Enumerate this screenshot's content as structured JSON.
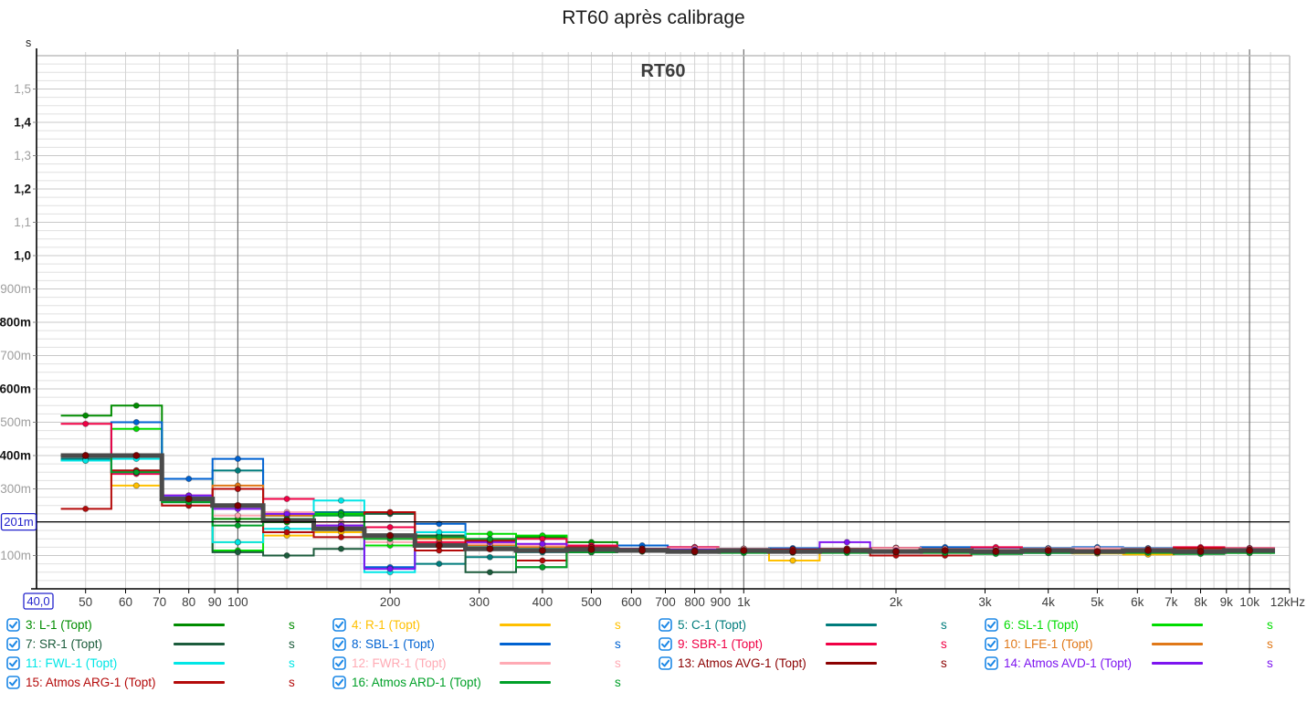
{
  "title": "RT60 après calibrage",
  "chart_data": {
    "type": "line",
    "style": "step-bands",
    "plot_title": "RT60",
    "y_axis": {
      "unit": "s",
      "min": 0,
      "max": 1.6,
      "minor_step": 0.025,
      "labels": [
        {
          "v": 1.5,
          "label": "1,5",
          "strong": false
        },
        {
          "v": 1.4,
          "label": "1,4",
          "strong": true
        },
        {
          "v": 1.3,
          "label": "1,3",
          "strong": false
        },
        {
          "v": 1.2,
          "label": "1,2",
          "strong": true
        },
        {
          "v": 1.1,
          "label": "1,1",
          "strong": false
        },
        {
          "v": 1.0,
          "label": "1,0",
          "strong": true
        },
        {
          "v": 0.9,
          "label": "900m",
          "strong": false
        },
        {
          "v": 0.8,
          "label": "800m",
          "strong": true
        },
        {
          "v": 0.7,
          "label": "700m",
          "strong": false
        },
        {
          "v": 0.6,
          "label": "600m",
          "strong": true
        },
        {
          "v": 0.5,
          "label": "500m",
          "strong": false
        },
        {
          "v": 0.4,
          "label": "400m",
          "strong": true
        },
        {
          "v": 0.3,
          "label": "300m",
          "strong": false
        },
        {
          "v": 0.1,
          "label": "100m",
          "strong": false
        }
      ]
    },
    "x_axis": {
      "scale": "log",
      "min": 40,
      "max": 12000,
      "ticks": [
        {
          "f": 50,
          "label": "50"
        },
        {
          "f": 60,
          "label": "60"
        },
        {
          "f": 70,
          "label": "70"
        },
        {
          "f": 80,
          "label": "80"
        },
        {
          "f": 90,
          "label": "90"
        },
        {
          "f": 100,
          "label": "100"
        },
        {
          "f": 200,
          "label": "200"
        },
        {
          "f": 300,
          "label": "300"
        },
        {
          "f": 400,
          "label": "400"
        },
        {
          "f": 500,
          "label": "500"
        },
        {
          "f": 600,
          "label": "600"
        },
        {
          "f": 700,
          "label": "700"
        },
        {
          "f": 800,
          "label": "800"
        },
        {
          "f": 900,
          "label": "900"
        },
        {
          "f": 1000,
          "label": "1k"
        },
        {
          "f": 2000,
          "label": "2k"
        },
        {
          "f": 3000,
          "label": "3k"
        },
        {
          "f": 4000,
          "label": "4k"
        },
        {
          "f": 5000,
          "label": "5k"
        },
        {
          "f": 6000,
          "label": "6k"
        },
        {
          "f": 7000,
          "label": "7k"
        },
        {
          "f": 8000,
          "label": "8k"
        },
        {
          "f": 9000,
          "label": "9k"
        },
        {
          "f": 10000,
          "label": "10k"
        },
        {
          "f": 12000,
          "label": "12kHz"
        }
      ],
      "grid_minor": [
        50,
        60,
        70,
        80,
        90,
        125,
        150,
        175,
        200,
        250,
        300,
        350,
        400,
        450,
        500,
        550,
        600,
        650,
        700,
        750,
        800,
        850,
        900,
        950,
        1100,
        1200,
        1300,
        1400,
        1500,
        1600,
        1700,
        1800,
        1900,
        2000,
        2500,
        3000,
        3500,
        4000,
        4500,
        5000,
        5500,
        6000,
        6500,
        7000,
        7500,
        8000,
        8500,
        9000,
        9500,
        11000
      ],
      "grid_major": [
        100,
        1000,
        10000
      ]
    },
    "cursor": {
      "x_label": "40,0",
      "y_label": "201m",
      "x_value": 40,
      "y_value": 0.201
    },
    "bands": [
      50,
      63,
      80,
      100,
      125,
      160,
      200,
      250,
      315,
      400,
      500,
      630,
      800,
      1000,
      1250,
      1600,
      2000,
      2500,
      3150,
      4000,
      5000,
      6300,
      8000,
      10000
    ],
    "series": [
      {
        "label": "3: L-1 (Topt)",
        "unit": "s",
        "checked": true,
        "color": "#008c00",
        "values": [
          0.52,
          0.55,
          0.27,
          0.21,
          0.22,
          0.225,
          0.16,
          0.16,
          0.13,
          0.155,
          0.14,
          0.12,
          0.115,
          0.113,
          0.112,
          0.113,
          0.112,
          0.11,
          0.112,
          0.113,
          0.112,
          0.11,
          0.113,
          0.112
        ]
      },
      {
        "label": "4: R-1 (Topt)",
        "unit": "s",
        "checked": true,
        "color": "#ffc000",
        "values": [
          0.4,
          0.31,
          0.265,
          0.14,
          0.16,
          0.17,
          0.15,
          0.14,
          0.13,
          0.12,
          0.118,
          0.115,
          0.112,
          0.11,
          0.085,
          0.11,
          0.112,
          0.11,
          0.108,
          0.11,
          0.106,
          0.103,
          0.11,
          0.112
        ]
      },
      {
        "label": "5: C-1 (Topt)",
        "unit": "s",
        "checked": true,
        "color": "#007c7c",
        "values": [
          0.39,
          0.35,
          0.26,
          0.355,
          0.2,
          0.23,
          0.16,
          0.075,
          0.095,
          0.11,
          0.12,
          0.115,
          0.118,
          0.115,
          0.112,
          0.115,
          0.123,
          0.12,
          0.115,
          0.118,
          0.12,
          0.118,
          0.122,
          0.12
        ]
      },
      {
        "label": "6: SL-1 (Topt)",
        "unit": "s",
        "checked": true,
        "color": "#00dc00",
        "values": [
          0.385,
          0.48,
          0.27,
          0.115,
          0.2,
          0.225,
          0.13,
          0.16,
          0.165,
          0.16,
          0.12,
          0.115,
          0.11,
          0.112,
          0.11,
          0.112,
          0.11,
          0.112,
          0.11,
          0.108,
          0.11,
          0.112,
          0.11,
          0.108
        ]
      },
      {
        "label": "7: SR-1 (Topt)",
        "unit": "s",
        "checked": true,
        "color": "#1c5c3c",
        "values": [
          0.4,
          0.355,
          0.27,
          0.11,
          0.1,
          0.12,
          0.225,
          0.16,
          0.05,
          0.065,
          0.11,
          0.112,
          0.11,
          0.112,
          0.11,
          0.112,
          0.11,
          0.112,
          0.11,
          0.112,
          0.11,
          0.112,
          0.11,
          0.11
        ]
      },
      {
        "label": "8: SBL-1 (Topt)",
        "unit": "s",
        "checked": true,
        "color": "#0062d1",
        "values": [
          0.4,
          0.5,
          0.33,
          0.39,
          0.22,
          0.19,
          0.065,
          0.195,
          0.125,
          0.12,
          0.125,
          0.13,
          0.125,
          0.12,
          0.122,
          0.12,
          0.122,
          0.125,
          0.12,
          0.122,
          0.125,
          0.122,
          0.12,
          0.122
        ]
      },
      {
        "label": "9: SBR-1 (Topt)",
        "unit": "s",
        "checked": true,
        "color": "#f00045",
        "values": [
          0.495,
          0.345,
          0.28,
          0.3,
          0.27,
          0.19,
          0.185,
          0.14,
          0.145,
          0.15,
          0.13,
          0.12,
          0.125,
          0.12,
          0.118,
          0.12,
          0.123,
          0.12,
          0.125,
          0.12,
          0.118,
          0.12,
          0.125,
          0.122
        ]
      },
      {
        "label": "10: LFE-1 (Topt)",
        "unit": "s",
        "checked": true,
        "color": "#e07818",
        "values": [
          0.4,
          0.35,
          0.27,
          0.31,
          0.22,
          0.18,
          0.16,
          0.15,
          0.13,
          0.125,
          0.12,
          0.118,
          0.115,
          0.112,
          0.115,
          0.112,
          0.11,
          0.112,
          0.115,
          0.112,
          0.11,
          0.112,
          0.11,
          0.112
        ]
      },
      {
        "label": "11: FWL-1 (Topt)",
        "unit": "s",
        "checked": true,
        "color": "#00e6e6",
        "values": [
          0.385,
          0.39,
          0.275,
          0.14,
          0.18,
          0.265,
          0.05,
          0.17,
          0.125,
          0.12,
          0.118,
          0.12,
          0.115,
          0.112,
          0.11,
          0.112,
          0.115,
          0.11,
          0.112,
          0.11,
          0.108,
          0.11,
          0.112,
          0.11
        ]
      },
      {
        "label": "12: FWR-1 (Topt)",
        "unit": "s",
        "checked": true,
        "color": "#ffaab4",
        "values": [
          0.4,
          0.35,
          0.25,
          0.22,
          0.23,
          0.2,
          0.14,
          0.13,
          0.135,
          0.13,
          0.125,
          0.12,
          0.122,
          0.12,
          0.118,
          0.12,
          0.122,
          0.12,
          0.118,
          0.12,
          0.122,
          0.12,
          0.118,
          0.12
        ]
      },
      {
        "label": "13: Atmos AVG-1 (Topt)",
        "unit": "s",
        "checked": true,
        "color": "#8b0000",
        "selected": true,
        "line_color": "#4b4b4b",
        "marker_color": "#7c0000",
        "values": [
          0.4,
          0.4,
          0.27,
          0.25,
          0.205,
          0.18,
          0.16,
          0.13,
          0.12,
          0.115,
          0.118,
          0.115,
          0.112,
          0.115,
          0.112,
          0.115,
          0.112,
          0.115,
          0.112,
          0.115,
          0.112,
          0.115,
          0.112,
          0.115
        ]
      },
      {
        "label": "14: Atmos AVD-1 (Topt)",
        "unit": "s",
        "checked": true,
        "color": "#7d14f0",
        "values": [
          0.4,
          0.35,
          0.28,
          0.24,
          0.225,
          0.19,
          0.06,
          0.13,
          0.14,
          0.135,
          0.125,
          0.12,
          0.118,
          0.115,
          0.112,
          0.14,
          0.115,
          0.112,
          0.11,
          0.108,
          0.11,
          0.112,
          0.115,
          0.112
        ]
      },
      {
        "label": "15: Atmos ARG-1 (Topt)",
        "unit": "s",
        "checked": true,
        "color": "#b40a0a",
        "values": [
          0.24,
          0.355,
          0.25,
          0.3,
          0.17,
          0.155,
          0.23,
          0.115,
          0.145,
          0.085,
          0.125,
          0.12,
          0.115,
          0.112,
          0.118,
          0.12,
          0.1,
          0.1,
          0.115,
          0.112,
          0.11,
          0.118,
          0.122,
          0.118
        ]
      },
      {
        "label": "16: Atmos ARD-1 (Topt)",
        "unit": "s",
        "checked": true,
        "color": "#00a028",
        "values": [
          0.4,
          0.35,
          0.26,
          0.19,
          0.21,
          0.22,
          0.15,
          0.155,
          0.15,
          0.065,
          0.11,
          0.112,
          0.11,
          0.108,
          0.11,
          0.108,
          0.11,
          0.108,
          0.105,
          0.108,
          0.11,
          0.108,
          0.105,
          0.108
        ]
      }
    ],
    "colors": {
      "cursor_box": "#2222cc",
      "checkbox": "#1b87e6",
      "grid_minor": "#e0e0e0",
      "grid_strong": "#c8c8c8",
      "grid_vminor": "#d4d4d4",
      "grid_vmajor": "#6e6e6e",
      "axis": "#000000",
      "border_light": "#bdbdbd"
    }
  }
}
